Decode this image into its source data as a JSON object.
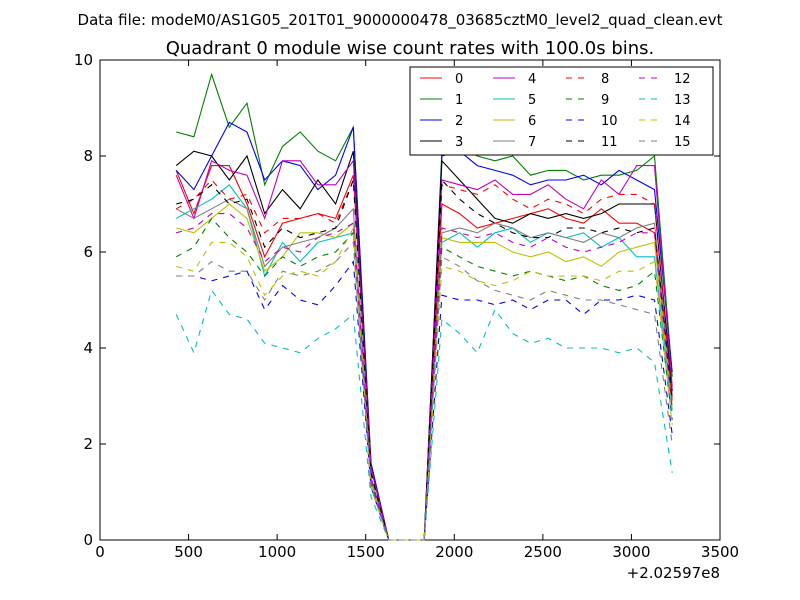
{
  "suptitle": "Data file: modeM0/AS1G05_201T01_9000000478_03685cztM0_level2_quad_clean.evt",
  "chart_data": {
    "type": "line",
    "title": "Quadrant 0 module wise count rates with 100.0s bins.",
    "xlabel": "",
    "ylabel": "",
    "x_offset_label": "+2.02597e8",
    "xlim": [
      0,
      3500
    ],
    "ylim": [
      0,
      10
    ],
    "x_ticks": [
      0,
      500,
      1000,
      1500,
      2000,
      2500,
      3000,
      3500
    ],
    "y_ticks": [
      0,
      2,
      4,
      6,
      8,
      10
    ],
    "x_tick_labels": [
      "0",
      "500",
      "1000",
      "1500",
      "2000",
      "2500",
      "3000",
      "3500"
    ],
    "y_tick_labels": [
      "0",
      "2",
      "4",
      "6",
      "8",
      "10"
    ],
    "grid": false,
    "legend_position": "top-right",
    "legend_columns": 4,
    "x": [
      430,
      530,
      630,
      730,
      830,
      930,
      1030,
      1130,
      1230,
      1330,
      1430,
      1530,
      1630,
      1730,
      1830,
      1930,
      2030,
      2130,
      2230,
      2330,
      2430,
      2530,
      2630,
      2730,
      2830,
      2930,
      3030,
      3130,
      3230
    ],
    "series": [
      {
        "name": "0",
        "color": "#ff0000",
        "dash": "solid",
        "values": [
          7.7,
          6.8,
          7.8,
          7.8,
          7.0,
          5.9,
          6.6,
          6.7,
          6.8,
          6.7,
          7.6,
          1.6,
          0,
          0,
          0,
          7.0,
          6.8,
          6.5,
          6.6,
          6.7,
          6.8,
          6.9,
          6.7,
          6.6,
          6.9,
          6.6,
          6.6,
          6.4,
          3.0
        ]
      },
      {
        "name": "1",
        "color": "#008000",
        "dash": "solid",
        "values": [
          8.5,
          8.4,
          9.7,
          8.6,
          9.1,
          7.4,
          8.2,
          8.5,
          8.1,
          7.9,
          8.6,
          1.6,
          0,
          0,
          0,
          8.1,
          8.2,
          8.0,
          7.9,
          8.0,
          7.6,
          7.7,
          7.7,
          7.5,
          7.6,
          7.6,
          7.7,
          8.0,
          3.4
        ]
      },
      {
        "name": "2",
        "color": "#0000ff",
        "dash": "solid",
        "values": [
          7.7,
          7.3,
          8.0,
          8.7,
          8.5,
          7.5,
          7.9,
          7.8,
          7.3,
          7.6,
          8.6,
          1.6,
          0,
          0,
          0,
          8.0,
          8.1,
          7.8,
          7.7,
          7.6,
          7.4,
          7.5,
          7.5,
          7.6,
          7.4,
          7.7,
          7.5,
          7.3,
          3.5
        ]
      },
      {
        "name": "3",
        "color": "#000000",
        "dash": "solid",
        "values": [
          7.8,
          8.1,
          8.0,
          7.5,
          8.0,
          6.8,
          7.3,
          6.9,
          7.5,
          7.0,
          8.1,
          1.5,
          0,
          0,
          0,
          7.9,
          7.5,
          7.1,
          6.7,
          6.6,
          6.8,
          6.7,
          6.8,
          6.7,
          6.8,
          7.0,
          7.0,
          7.0,
          3.1
        ]
      },
      {
        "name": "4",
        "color": "#bf00bf",
        "dash": "solid",
        "values": [
          7.6,
          6.7,
          7.9,
          7.7,
          7.6,
          6.7,
          7.9,
          7.9,
          7.4,
          7.4,
          7.9,
          1.5,
          0,
          0,
          0,
          7.5,
          7.4,
          7.3,
          7.5,
          7.2,
          7.2,
          7.4,
          7.1,
          6.9,
          7.5,
          7.2,
          7.8,
          7.8,
          3.2
        ]
      },
      {
        "name": "5",
        "color": "#00bfbf",
        "dash": "solid",
        "values": [
          6.7,
          6.9,
          7.1,
          7.4,
          6.9,
          5.5,
          6.2,
          5.8,
          6.2,
          6.3,
          6.4,
          1.2,
          0,
          0,
          0,
          6.2,
          6.4,
          6.1,
          6.4,
          6.5,
          6.2,
          6.4,
          6.3,
          6.4,
          6.1,
          6.3,
          5.9,
          5.9,
          2.7
        ]
      },
      {
        "name": "6",
        "color": "#bfbf00",
        "dash": "solid",
        "values": [
          6.5,
          6.4,
          6.7,
          7.0,
          6.7,
          5.6,
          5.9,
          6.4,
          6.4,
          6.3,
          6.6,
          1.2,
          0,
          0,
          0,
          6.3,
          6.2,
          6.2,
          6.2,
          6.0,
          5.9,
          6.0,
          5.8,
          5.9,
          5.7,
          6.0,
          6.1,
          6.2,
          2.8
        ]
      },
      {
        "name": "7",
        "color": "#7f7f7f",
        "dash": "solid",
        "values": [
          6.9,
          6.7,
          6.9,
          7.1,
          6.9,
          5.7,
          6.1,
          6.2,
          6.3,
          6.5,
          6.9,
          1.3,
          0,
          0,
          0,
          6.4,
          6.5,
          6.4,
          6.6,
          6.5,
          6.3,
          6.4,
          6.3,
          6.2,
          6.4,
          6.3,
          6.5,
          6.6,
          2.9
        ]
      },
      {
        "name": "8",
        "color": "#ff0000",
        "dash": "dashed",
        "values": [
          6.9,
          7.1,
          7.5,
          7.1,
          7.2,
          6.4,
          6.7,
          6.7,
          6.8,
          6.6,
          7.5,
          1.4,
          0,
          0,
          0,
          7.4,
          7.3,
          7.2,
          7.4,
          7.1,
          6.9,
          7.1,
          7.0,
          6.8,
          7.1,
          7.2,
          7.2,
          7.0,
          2.9
        ]
      },
      {
        "name": "9",
        "color": "#008000",
        "dash": "dashed",
        "values": [
          5.9,
          6.1,
          6.7,
          6.3,
          6.0,
          5.5,
          5.9,
          5.7,
          5.9,
          6.0,
          6.4,
          1.2,
          0,
          0,
          0,
          6.1,
          5.9,
          5.7,
          5.6,
          5.5,
          5.6,
          5.5,
          5.4,
          5.5,
          5.3,
          5.2,
          5.3,
          5.6,
          2.5
        ]
      },
      {
        "name": "10",
        "color": "#0000ff",
        "dash": "dashed",
        "values": [
          5.5,
          5.5,
          5.4,
          5.5,
          5.6,
          4.8,
          5.3,
          5.0,
          4.9,
          5.3,
          5.8,
          1.1,
          0,
          0,
          0,
          5.1,
          5.0,
          5.0,
          4.9,
          5.0,
          4.8,
          5.0,
          5.0,
          4.7,
          5.0,
          5.0,
          5.1,
          5.0,
          2.2
        ]
      },
      {
        "name": "11",
        "color": "#000000",
        "dash": "dashed",
        "values": [
          7.0,
          7.1,
          7.4,
          7.0,
          7.1,
          6.1,
          6.5,
          6.3,
          6.4,
          6.5,
          7.5,
          1.4,
          0,
          0,
          0,
          7.5,
          7.1,
          6.8,
          6.6,
          6.4,
          6.3,
          6.3,
          6.5,
          6.5,
          6.4,
          6.5,
          6.4,
          6.5,
          2.9
        ]
      },
      {
        "name": "12",
        "color": "#bf00bf",
        "dash": "dashed",
        "values": [
          6.4,
          6.5,
          6.8,
          6.8,
          6.5,
          5.8,
          6.1,
          6.0,
          6.3,
          6.4,
          6.6,
          1.3,
          0,
          0,
          0,
          6.5,
          6.4,
          6.3,
          6.4,
          6.2,
          6.1,
          6.3,
          6.1,
          6.0,
          6.1,
          6.2,
          6.4,
          6.4,
          2.7
        ]
      },
      {
        "name": "13",
        "color": "#00bfbf",
        "dash": "dashed",
        "values": [
          4.7,
          3.9,
          5.2,
          4.7,
          4.6,
          4.1,
          4.0,
          3.9,
          4.2,
          4.4,
          4.7,
          0.9,
          0,
          0,
          0,
          4.6,
          4.3,
          3.9,
          4.8,
          4.3,
          4.1,
          4.2,
          4.0,
          4.0,
          4.0,
          3.9,
          4.0,
          3.7,
          1.4
        ]
      },
      {
        "name": "14",
        "color": "#bfbf00",
        "dash": "dashed",
        "values": [
          5.7,
          5.6,
          6.2,
          6.2,
          5.9,
          5.1,
          5.5,
          5.6,
          5.5,
          5.8,
          6.5,
          1.1,
          0,
          0,
          0,
          5.7,
          5.6,
          5.4,
          5.3,
          5.4,
          5.6,
          5.5,
          5.5,
          5.5,
          5.4,
          5.6,
          5.6,
          5.8,
          2.4
        ]
      },
      {
        "name": "15",
        "color": "#7f7f7f",
        "dash": "dashed",
        "values": [
          5.5,
          5.5,
          5.8,
          5.6,
          5.6,
          5.0,
          5.6,
          5.5,
          5.6,
          5.8,
          6.2,
          1.1,
          0,
          0,
          0,
          5.9,
          5.7,
          5.4,
          5.2,
          5.1,
          5.0,
          5.2,
          5.1,
          5.0,
          5.0,
          4.9,
          4.8,
          4.7,
          2.0
        ]
      }
    ]
  }
}
